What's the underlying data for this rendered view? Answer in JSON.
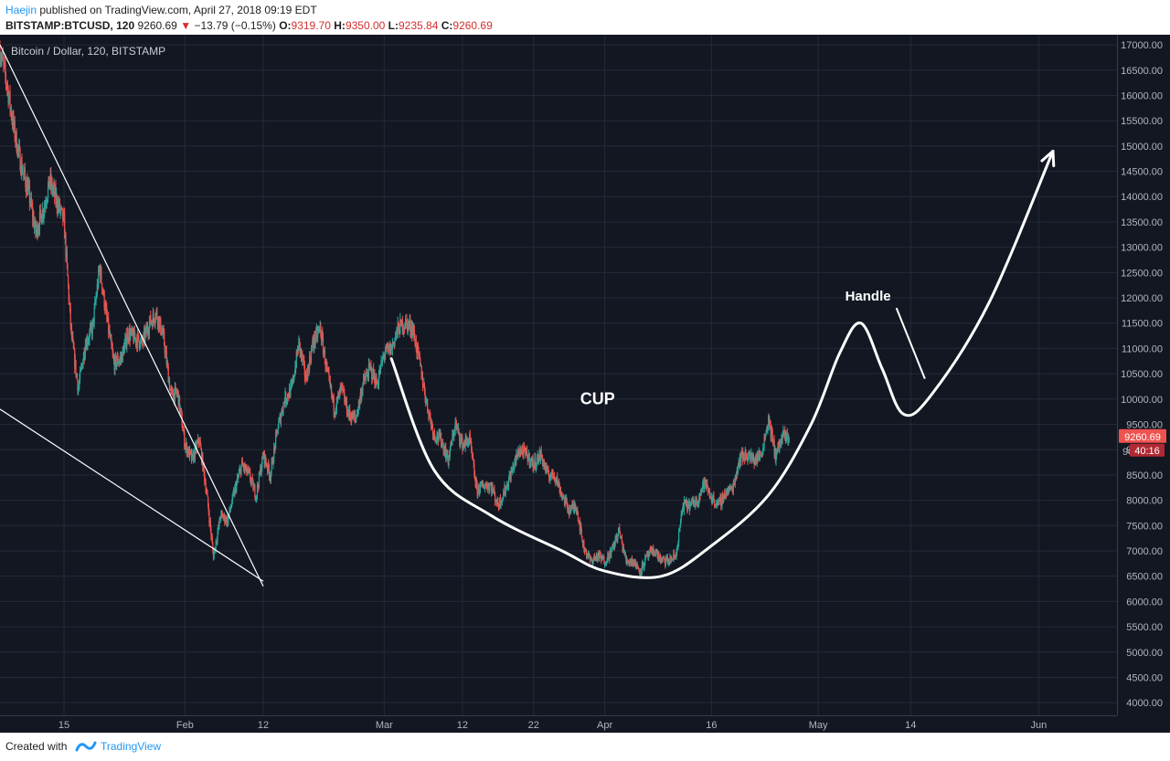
{
  "header": {
    "author": "Haejin",
    "published": "published on TradingView.com, April 27, 2018 09:19 EDT",
    "symbol": "BITSTAMP:BTCUSD, 120",
    "last": "9260.69",
    "arrow": "▼",
    "change": "−13.79 (−0.15%)",
    "open_label": "O:",
    "open": "9319.70",
    "high_label": "H:",
    "high": "9350.00",
    "low_label": "L:",
    "low": "9235.84",
    "close_label": "C:",
    "close": "9260.69"
  },
  "footer": {
    "created_with": "Created with",
    "brand": "TradingView"
  },
  "colors": {
    "background": "#131722",
    "grid": "#252a38",
    "up": "#26a69a",
    "down": "#ef5350",
    "drawing": "#ffffff",
    "price_tag": "#ef5350"
  },
  "chart_data": {
    "type": "candlestick",
    "title": "Bitcoin / Dollar, 120, BITSTAMP",
    "y_ticks": [
      "17000.00",
      "16500.00",
      "16000.00",
      "15500.00",
      "15000.00",
      "14500.00",
      "14000.00",
      "13500.00",
      "13000.00",
      "12500.00",
      "12000.00",
      "11500.00",
      "11000.00",
      "10500.00",
      "10000.00",
      "9500.00",
      "9000.00",
      "8500.00",
      "8000.00",
      "7500.00",
      "7000.00",
      "6500.00",
      "6000.00",
      "5500.00",
      "5000.00",
      "4500.00",
      "4000.00"
    ],
    "ylim": [
      3750,
      17200
    ],
    "x_ticks": [
      {
        "label": "15",
        "date": "2018-01-15"
      },
      {
        "label": "Feb",
        "date": "2018-02-01"
      },
      {
        "label": "12",
        "date": "2018-02-12"
      },
      {
        "label": "Mar",
        "date": "2018-03-01"
      },
      {
        "label": "12",
        "date": "2018-03-12"
      },
      {
        "label": "22",
        "date": "2018-03-22"
      },
      {
        "label": "Apr",
        "date": "2018-04-01"
      },
      {
        "label": "16",
        "date": "2018-04-16"
      },
      {
        "label": "May",
        "date": "2018-05-01"
      },
      {
        "label": "14",
        "date": "2018-05-14"
      },
      {
        "label": "Jun",
        "date": "2018-06-01"
      }
    ],
    "xlim": [
      "2018-01-06",
      "2018-06-12"
    ],
    "grid": true,
    "price_path": [
      [
        "2018-01-06",
        16900
      ],
      [
        "2018-01-07",
        16200
      ],
      [
        "2018-01-08",
        15300
      ],
      [
        "2018-01-09",
        14600
      ],
      [
        "2018-01-10",
        14100
      ],
      [
        "2018-01-11",
        13300
      ],
      [
        "2018-01-12",
        13700
      ],
      [
        "2018-01-13",
        14300
      ],
      [
        "2018-01-14",
        13900
      ],
      [
        "2018-01-15",
        13500
      ],
      [
        "2018-01-16",
        11300
      ],
      [
        "2018-01-17",
        10200
      ],
      [
        "2018-01-18",
        11100
      ],
      [
        "2018-01-19",
        11400
      ],
      [
        "2018-01-20",
        12600
      ],
      [
        "2018-01-21",
        11600
      ],
      [
        "2018-01-22",
        10700
      ],
      [
        "2018-01-23",
        10800
      ],
      [
        "2018-01-24",
        11300
      ],
      [
        "2018-01-25",
        11200
      ],
      [
        "2018-01-26",
        11100
      ],
      [
        "2018-01-27",
        11500
      ],
      [
        "2018-01-28",
        11700
      ],
      [
        "2018-01-29",
        11200
      ],
      [
        "2018-01-30",
        10100
      ],
      [
        "2018-01-31",
        10100
      ],
      [
        "2018-02-01",
        9100
      ],
      [
        "2018-02-02",
        8800
      ],
      [
        "2018-02-03",
        9200
      ],
      [
        "2018-02-04",
        8200
      ],
      [
        "2018-02-05",
        6900
      ],
      [
        "2018-02-06",
        7700
      ],
      [
        "2018-02-07",
        7600
      ],
      [
        "2018-02-08",
        8200
      ],
      [
        "2018-02-09",
        8700
      ],
      [
        "2018-02-10",
        8500
      ],
      [
        "2018-02-11",
        8100
      ],
      [
        "2018-02-12",
        8900
      ],
      [
        "2018-02-13",
        8500
      ],
      [
        "2018-02-14",
        9400
      ],
      [
        "2018-02-15",
        10000
      ],
      [
        "2018-02-16",
        10200
      ],
      [
        "2018-02-17",
        11100
      ],
      [
        "2018-02-18",
        10400
      ],
      [
        "2018-02-19",
        11100
      ],
      [
        "2018-02-20",
        11400
      ],
      [
        "2018-02-21",
        10500
      ],
      [
        "2018-02-22",
        9800
      ],
      [
        "2018-02-23",
        10200
      ],
      [
        "2018-02-24",
        9700
      ],
      [
        "2018-02-25",
        9600
      ],
      [
        "2018-02-26",
        10300
      ],
      [
        "2018-02-27",
        10600
      ],
      [
        "2018-02-28",
        10300
      ],
      [
        "2018-03-01",
        10900
      ],
      [
        "2018-03-02",
        11000
      ],
      [
        "2018-03-03",
        11400
      ],
      [
        "2018-03-04",
        11500
      ],
      [
        "2018-03-05",
        11400
      ],
      [
        "2018-03-06",
        10700
      ],
      [
        "2018-03-07",
        9900
      ],
      [
        "2018-03-08",
        9300
      ],
      [
        "2018-03-09",
        9200
      ],
      [
        "2018-03-10",
        8800
      ],
      [
        "2018-03-11",
        9500
      ],
      [
        "2018-03-12",
        9100
      ],
      [
        "2018-03-13",
        9200
      ],
      [
        "2018-03-14",
        8200
      ],
      [
        "2018-03-15",
        8300
      ],
      [
        "2018-03-16",
        8300
      ],
      [
        "2018-03-17",
        7900
      ],
      [
        "2018-03-18",
        8200
      ],
      [
        "2018-03-19",
        8600
      ],
      [
        "2018-03-20",
        9000
      ],
      [
        "2018-03-21",
        8900
      ],
      [
        "2018-03-22",
        8700
      ],
      [
        "2018-03-23",
        8900
      ],
      [
        "2018-03-24",
        8500
      ],
      [
        "2018-03-25",
        8500
      ],
      [
        "2018-03-26",
        8100
      ],
      [
        "2018-03-27",
        7800
      ],
      [
        "2018-03-28",
        7900
      ],
      [
        "2018-03-29",
        7100
      ],
      [
        "2018-03-30",
        6800
      ],
      [
        "2018-03-31",
        6900
      ],
      [
        "2018-04-01",
        6800
      ],
      [
        "2018-04-02",
        7000
      ],
      [
        "2018-04-03",
        7400
      ],
      [
        "2018-04-04",
        6800
      ],
      [
        "2018-04-05",
        6800
      ],
      [
        "2018-04-06",
        6600
      ],
      [
        "2018-04-07",
        6900
      ],
      [
        "2018-04-08",
        7000
      ],
      [
        "2018-04-09",
        6800
      ],
      [
        "2018-04-10",
        6800
      ],
      [
        "2018-04-11",
        6900
      ],
      [
        "2018-04-12",
        7900
      ],
      [
        "2018-04-13",
        7900
      ],
      [
        "2018-04-14",
        8000
      ],
      [
        "2018-04-15",
        8350
      ],
      [
        "2018-04-16",
        8050
      ],
      [
        "2018-04-17",
        7900
      ],
      [
        "2018-04-18",
        8150
      ],
      [
        "2018-04-19",
        8250
      ],
      [
        "2018-04-20",
        8850
      ],
      [
        "2018-04-21",
        8900
      ],
      [
        "2018-04-22",
        8800
      ],
      [
        "2018-04-23",
        8900
      ],
      [
        "2018-04-24",
        9600
      ],
      [
        "2018-04-25",
        8900
      ],
      [
        "2018-04-26",
        9250
      ],
      [
        "2018-04-27",
        9260.69
      ]
    ],
    "drawings": [
      {
        "type": "trendline",
        "points": [
          [
            "2018-01-06",
            17000
          ],
          [
            "2018-02-12",
            6300
          ]
        ]
      },
      {
        "type": "trendline",
        "points": [
          [
            "2018-01-06",
            9800
          ],
          [
            "2018-02-12",
            6400
          ]
        ]
      },
      {
        "type": "curve",
        "name": "cup",
        "points": [
          [
            "2018-03-02",
            10800
          ],
          [
            "2018-03-08",
            8600
          ],
          [
            "2018-03-16",
            7700
          ],
          [
            "2018-03-26",
            7000
          ],
          [
            "2018-04-01",
            6600
          ],
          [
            "2018-04-09",
            6500
          ],
          [
            "2018-04-16",
            7100
          ],
          [
            "2018-04-24",
            8100
          ],
          [
            "2018-04-30",
            9500
          ],
          [
            "2018-05-04",
            10900
          ],
          [
            "2018-05-07",
            11500
          ],
          [
            "2018-05-10",
            10600
          ],
          [
            "2018-05-13",
            9700
          ],
          [
            "2018-05-17",
            10100
          ],
          [
            "2018-05-25",
            11900
          ],
          [
            "2018-06-03",
            14900
          ]
        ]
      },
      {
        "type": "trendline",
        "name": "handle-stroke",
        "points": [
          [
            "2018-05-12",
            11800
          ],
          [
            "2018-05-16",
            10400
          ]
        ]
      }
    ],
    "annotations": [
      {
        "text": "CUP",
        "date": "2018-03-31",
        "price": 9900
      },
      {
        "text": "Handle",
        "date": "2018-05-08",
        "price": 11950
      }
    ],
    "last_price": "9260.69",
    "countdown": "40:16",
    "hidden_tick": "9000.00"
  }
}
